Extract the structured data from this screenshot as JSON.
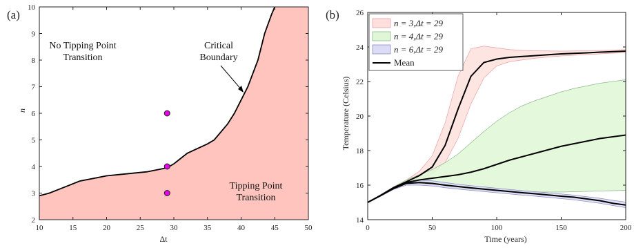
{
  "chart_data": [
    {
      "type": "area",
      "panel_label": "(a)",
      "xlabel": "Δt",
      "ylabel": "n",
      "xlim": [
        10,
        50
      ],
      "ylim": [
        2,
        10
      ],
      "xticks": [
        10,
        15,
        20,
        25,
        30,
        35,
        40,
        45,
        50
      ],
      "yticks": [
        2,
        3,
        4,
        5,
        6,
        7,
        8,
        9,
        10
      ],
      "boundary": {
        "x": [
          10,
          11.5,
          13.5,
          16,
          20,
          22,
          26,
          29,
          30,
          32,
          35,
          36,
          38,
          39,
          41,
          42.5,
          43.5,
          44.5,
          45
        ],
        "y": [
          2.9,
          3.0,
          3.2,
          3.45,
          3.65,
          3.7,
          3.8,
          3.95,
          4.1,
          4.5,
          4.85,
          5.0,
          5.6,
          6.0,
          7.0,
          8.0,
          9.0,
          9.7,
          10.0
        ]
      },
      "points": {
        "x": [
          29,
          29,
          29
        ],
        "y": [
          3,
          4,
          6
        ],
        "color": "#e600e6"
      },
      "region_color": "#ffc4bd",
      "annotations": {
        "no_tipping": [
          "No Tipping Point",
          "Transition"
        ],
        "tipping": [
          "Tipping Point",
          "Transition"
        ],
        "critical": [
          "Critical",
          "Boundary"
        ]
      }
    },
    {
      "type": "line",
      "panel_label": "(b)",
      "xlabel": "Time (years)",
      "ylabel": "Temperature (Celsius)",
      "xlim": [
        0,
        200
      ],
      "ylim": [
        14,
        26
      ],
      "xticks": [
        0,
        50,
        100,
        150,
        200
      ],
      "yticks": [
        14,
        16,
        18,
        20,
        22,
        24,
        26
      ],
      "x": [
        0,
        10,
        20,
        30,
        40,
        50,
        60,
        70,
        80,
        90,
        100,
        110,
        120,
        130,
        140,
        150,
        160,
        170,
        180,
        190,
        200
      ],
      "series": [
        {
          "name": "n = 3,Δt = 29",
          "fill": "#fde0dd",
          "edge": "#e8a0a0",
          "mean": [
            15.0,
            15.4,
            15.85,
            16.2,
            16.55,
            17.05,
            18.3,
            20.4,
            22.3,
            23.1,
            23.3,
            23.4,
            23.45,
            23.5,
            23.55,
            23.6,
            23.63,
            23.66,
            23.7,
            23.73,
            23.76
          ],
          "upper": [
            15.0,
            15.45,
            15.9,
            16.3,
            16.8,
            17.7,
            19.6,
            22.3,
            23.9,
            24.05,
            23.95,
            23.85,
            23.8,
            23.78,
            23.77,
            23.76,
            23.77,
            23.78,
            23.8,
            23.82,
            23.85
          ],
          "lower": [
            15.0,
            15.4,
            15.8,
            16.15,
            16.35,
            16.65,
            17.3,
            18.7,
            20.7,
            22.2,
            22.9,
            23.15,
            23.25,
            23.35,
            23.42,
            23.48,
            23.52,
            23.56,
            23.6,
            23.64,
            23.68
          ]
        },
        {
          "name": "n = 4,Δt = 29",
          "fill": "#dff7d6",
          "edge": "#8cb88c",
          "mean": [
            15.0,
            15.4,
            15.85,
            16.15,
            16.3,
            16.4,
            16.5,
            16.6,
            16.75,
            16.95,
            17.2,
            17.45,
            17.65,
            17.85,
            18.05,
            18.25,
            18.4,
            18.55,
            18.7,
            18.8,
            18.9
          ],
          "upper": [
            15.0,
            15.45,
            15.9,
            16.3,
            16.6,
            16.9,
            17.3,
            17.8,
            18.45,
            19.1,
            19.7,
            20.2,
            20.6,
            20.9,
            21.15,
            21.4,
            21.6,
            21.75,
            21.9,
            22.0,
            22.1
          ],
          "lower": [
            15.0,
            15.4,
            15.8,
            16.1,
            16.1,
            16.0,
            15.9,
            15.8,
            15.75,
            15.7,
            15.65,
            15.62,
            15.6,
            15.6,
            15.6,
            15.6,
            15.62,
            15.64,
            15.66,
            15.68,
            15.7
          ]
        },
        {
          "name": "n = 6,Δt = 29",
          "fill": "#dcdcf7",
          "edge": "#8c8cc0",
          "mean": [
            15.0,
            15.4,
            15.8,
            16.1,
            16.15,
            16.1,
            16.0,
            15.92,
            15.84,
            15.77,
            15.7,
            15.63,
            15.56,
            15.5,
            15.43,
            15.36,
            15.3,
            15.2,
            15.1,
            14.95,
            14.85
          ],
          "upper": [
            15.0,
            15.45,
            15.85,
            16.2,
            16.3,
            16.25,
            16.15,
            16.05,
            15.97,
            15.9,
            15.82,
            15.75,
            15.68,
            15.62,
            15.55,
            15.49,
            15.42,
            15.33,
            15.24,
            15.12,
            15.02
          ],
          "lower": [
            15.0,
            15.35,
            15.75,
            16.0,
            16.0,
            15.95,
            15.85,
            15.77,
            15.7,
            15.63,
            15.56,
            15.49,
            15.42,
            15.36,
            15.29,
            15.22,
            15.15,
            15.05,
            14.95,
            14.82,
            14.7
          ]
        }
      ],
      "mean_label": "Mean",
      "legend_position": "top-left"
    }
  ]
}
